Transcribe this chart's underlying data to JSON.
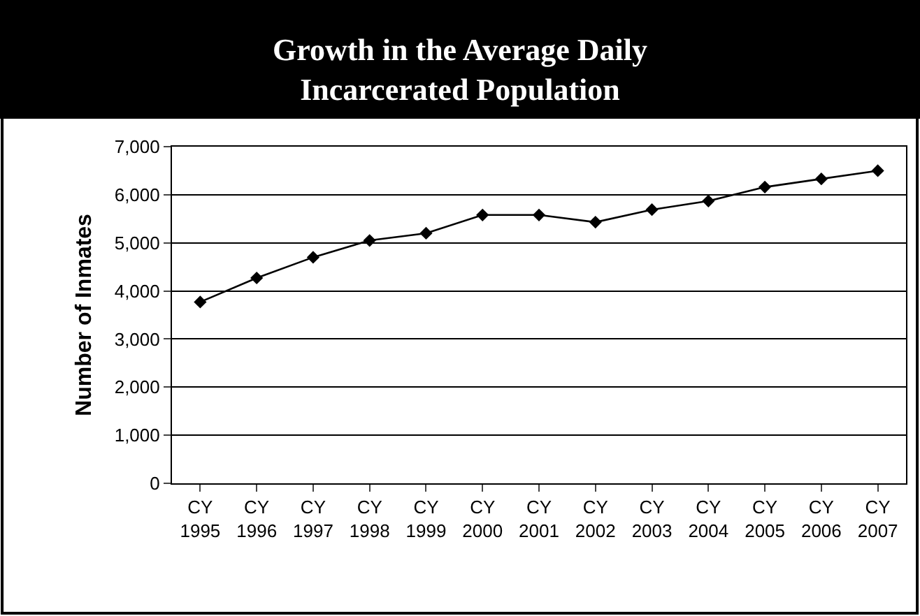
{
  "chart_data": {
    "type": "line",
    "title": "Growth in the Average Daily Incarcerated Population",
    "ylabel": "Number of Inmates",
    "categories": [
      "CY 1995",
      "CY 1996",
      "CY 1997",
      "CY 1998",
      "CY 1999",
      "CY 2000",
      "CY 2001",
      "CY 2002",
      "CY 2003",
      "CY 2004",
      "CY 2005",
      "CY 2006",
      "CY 2007"
    ],
    "series": [
      {
        "color": "#000000",
        "values": [
          3770,
          4270,
          4700,
          5050,
          5200,
          5580,
          5580,
          5430,
          5690,
          5870,
          6160,
          6330,
          6500
        ]
      }
    ],
    "ylim": [
      0,
      7000
    ],
    "yticks": [
      {
        "value": 0,
        "label": "0"
      },
      {
        "value": 1000,
        "label": "1,000"
      },
      {
        "value": 2000,
        "label": "2,000"
      },
      {
        "value": 3000,
        "label": "3,000"
      },
      {
        "value": 4000,
        "label": "4,000"
      },
      {
        "value": 5000,
        "label": "5,000"
      },
      {
        "value": 6000,
        "label": "6,000"
      },
      {
        "value": 7000,
        "label": "7,000"
      }
    ],
    "grid": "y",
    "marker": "diamond",
    "line_style": "solid"
  }
}
